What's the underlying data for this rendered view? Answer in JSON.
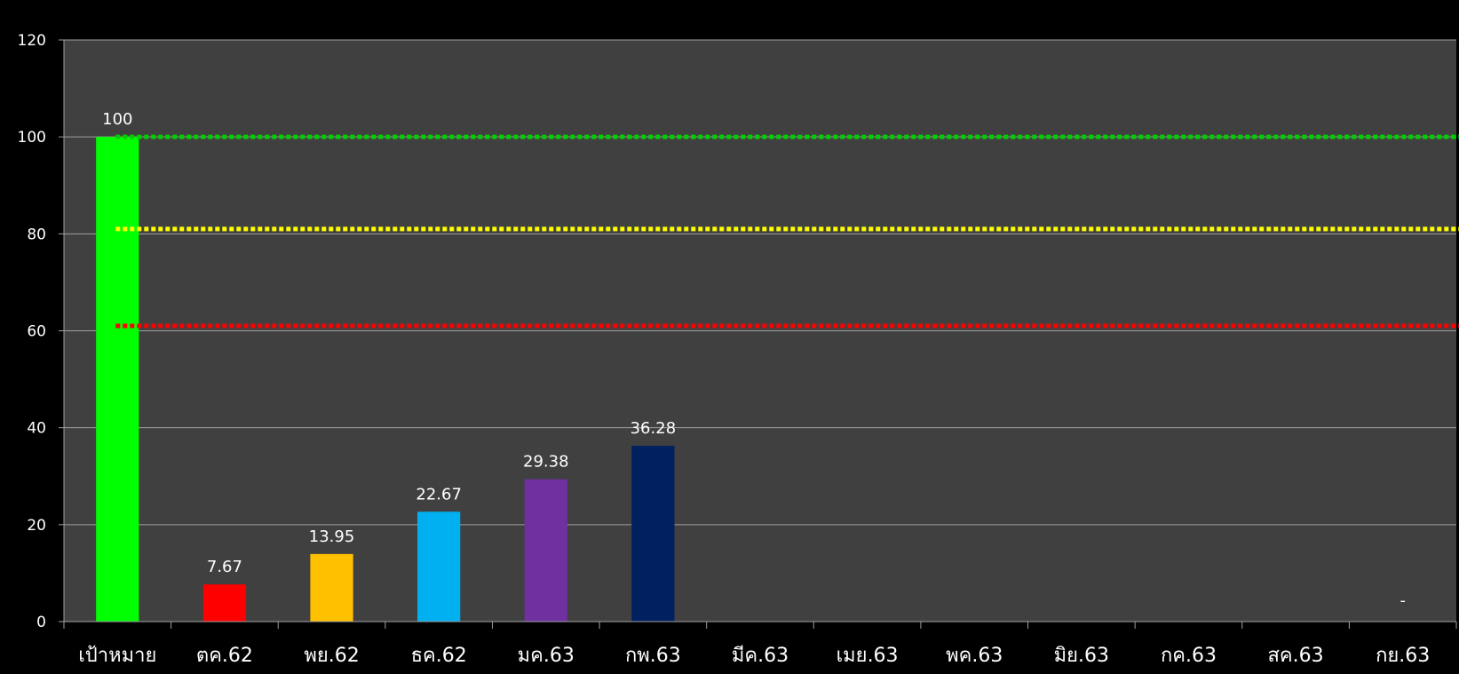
{
  "chart_data": {
    "type": "bar",
    "title": "",
    "xlabel": "",
    "ylabel": "",
    "ylim": [
      0,
      120
    ],
    "yticks": [
      "0",
      "20",
      "40",
      "60",
      "80",
      "100",
      "120"
    ],
    "grid": true,
    "categories": [
      "เป้าหมาย",
      "ตค.62",
      "พย.62",
      "ธค.62",
      "มค.63",
      "กพ.63",
      "มีค.63",
      "เมย.63",
      "พค.63",
      "มิย.63",
      "กค.63",
      "สค.63",
      "กย.63"
    ],
    "values": [
      100,
      7.67,
      13.95,
      22.67,
      29.38,
      36.28,
      null,
      null,
      null,
      null,
      null,
      null,
      null
    ],
    "data_labels": [
      "100",
      "7.67",
      "13.95",
      "22.67",
      "29.38",
      "36.28",
      "",
      "",
      "",
      "",
      "",
      "",
      "-"
    ],
    "bar_colors": [
      "#00ff00",
      "#ff0000",
      "#ffc000",
      "#00b0f0",
      "#7030a0",
      "#002060",
      "#404040",
      "#404040",
      "#404040",
      "#404040",
      "#404040",
      "#404040",
      "#404040"
    ],
    "reference_lines": [
      {
        "y": 100,
        "color": "#00d000",
        "style": "dotted"
      },
      {
        "y": 81,
        "color": "#ffff00",
        "style": "dotted"
      },
      {
        "y": 61,
        "color": "#ff0000",
        "style": "dotted"
      }
    ],
    "plot_background": "#404040",
    "page_background": "#000000",
    "gridline_color": "#a0a0a0"
  }
}
